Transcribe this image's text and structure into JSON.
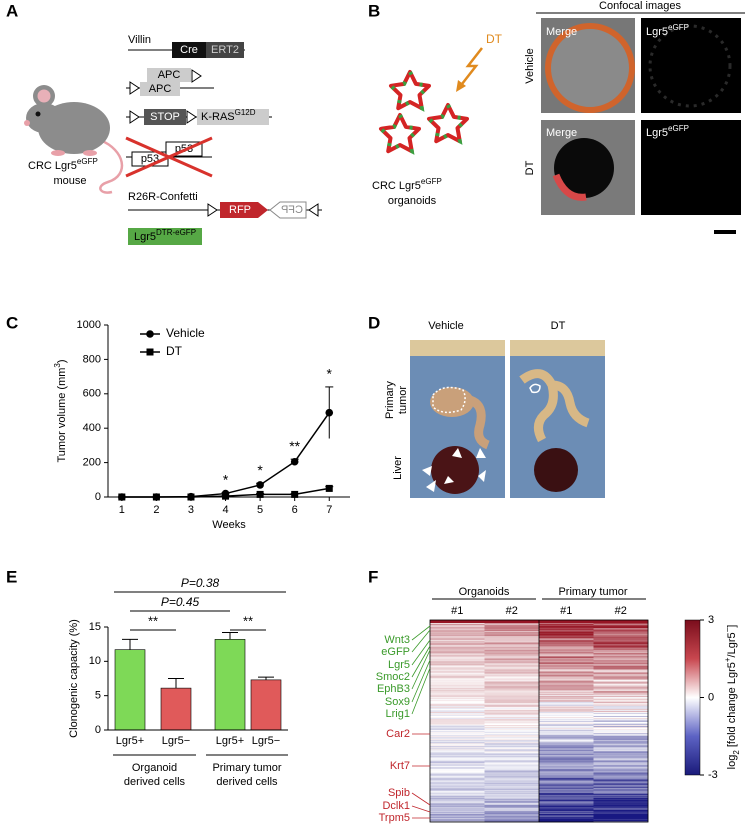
{
  "panel_labels": [
    "A",
    "B",
    "C",
    "D",
    "E",
    "F"
  ],
  "panel_a": {
    "villin": "Villin",
    "cre": "Cre",
    "ert2": "ERT2",
    "apc_top": "APC",
    "apc_bottom": "APC",
    "stop": "STOP",
    "kras": [
      "K-RAS",
      "G12D"
    ],
    "p53_1": "p53",
    "p53_2": "p53",
    "confetti": "R26R-Confetti",
    "rfp": "RFP",
    "cfp": "CFP",
    "lgr5_dtr": [
      "Lgr5",
      "DTR-eGFP"
    ],
    "mouse_label": [
      "CRC Lgr5",
      "eGFP"
    ],
    "mouse_label_2": "mouse"
  },
  "panel_b": {
    "dt": "DT",
    "organoid_label": [
      "CRC Lgr5",
      "eGFP"
    ],
    "organoid_label_2": "organoids",
    "confocal_title": "Confocal images",
    "rows": [
      "Vehicle",
      "DT"
    ],
    "merge_label": "Merge",
    "lgr5_label": [
      "Lgr5",
      "eGFP"
    ]
  },
  "panel_d": {
    "columns": [
      "Vehicle",
      "DT"
    ],
    "row_primary": [
      "Primary",
      "tumor"
    ],
    "row_liver": "Liver"
  },
  "chart_data": [
    {
      "type": "line",
      "x": [
        1,
        2,
        3,
        4,
        5,
        6,
        7
      ],
      "series": [
        {
          "name": "Vehicle",
          "color": "#000000",
          "marker": "circle",
          "values": [
            0,
            0,
            2,
            20,
            70,
            205,
            490
          ],
          "errors": [
            0,
            0,
            0,
            5,
            10,
            15,
            150
          ]
        },
        {
          "name": "DT",
          "color": "#000000",
          "marker": "square",
          "values": [
            0,
            0,
            0,
            5,
            15,
            15,
            50
          ],
          "errors": [
            0,
            0,
            0,
            3,
            5,
            5,
            10
          ]
        }
      ],
      "annotations": [
        "*",
        "*",
        "**",
        "*"
      ],
      "ylabel": [
        "Tumor volume (mm",
        "3",
        ")"
      ],
      "xlabel": "Weeks",
      "xlim": [
        0.6,
        7.6
      ],
      "xticks": [
        1,
        2,
        3,
        4,
        5,
        6,
        7
      ],
      "ylim": [
        0,
        1000
      ],
      "yticks": [
        0,
        200,
        400,
        600,
        800,
        1000
      ]
    },
    {
      "type": "bar",
      "categories": [
        "Lgr5+",
        "Lgr5−",
        "Lgr5+",
        "Lgr5−"
      ],
      "values": [
        11.7,
        6.1,
        13.2,
        7.3
      ],
      "errors": [
        1.5,
        1.4,
        1.0,
        0.4
      ],
      "colors": [
        "#7ed957",
        "#e05a5a",
        "#7ed957",
        "#e05a5a"
      ],
      "groups": [
        [
          "Organoid",
          "derived cells"
        ],
        [
          "Primary tumor",
          "derived cells"
        ]
      ],
      "annotations": [
        "**",
        "**",
        "P=0.45",
        "P=0.38"
      ],
      "ylabel": "Clonogenic capacity (%)",
      "ylim": [
        0,
        15
      ],
      "yticks": [
        0,
        5,
        10,
        15
      ]
    }
  ],
  "panel_f": {
    "groups": [
      "Organoids",
      "Primary tumor"
    ],
    "samples": [
      "#1",
      "#2",
      "#1",
      "#2"
    ],
    "up_genes": [
      "Wnt3",
      "eGFP",
      "Lgr5",
      "Smoc2",
      "EphB3",
      "Sox9",
      "Lrig1"
    ],
    "down_genes": [
      "Car2",
      "Krt7",
      "Spib",
      "Dclk1",
      "Trpm5"
    ],
    "clim": [
      -3,
      3
    ],
    "colorbar_ticks": [
      3,
      0,
      -3
    ],
    "colorbar_label": [
      "log",
      "2",
      " [fold change Lgr5",
      "+",
      "/Lgr5",
      "−",
      "]"
    ]
  }
}
